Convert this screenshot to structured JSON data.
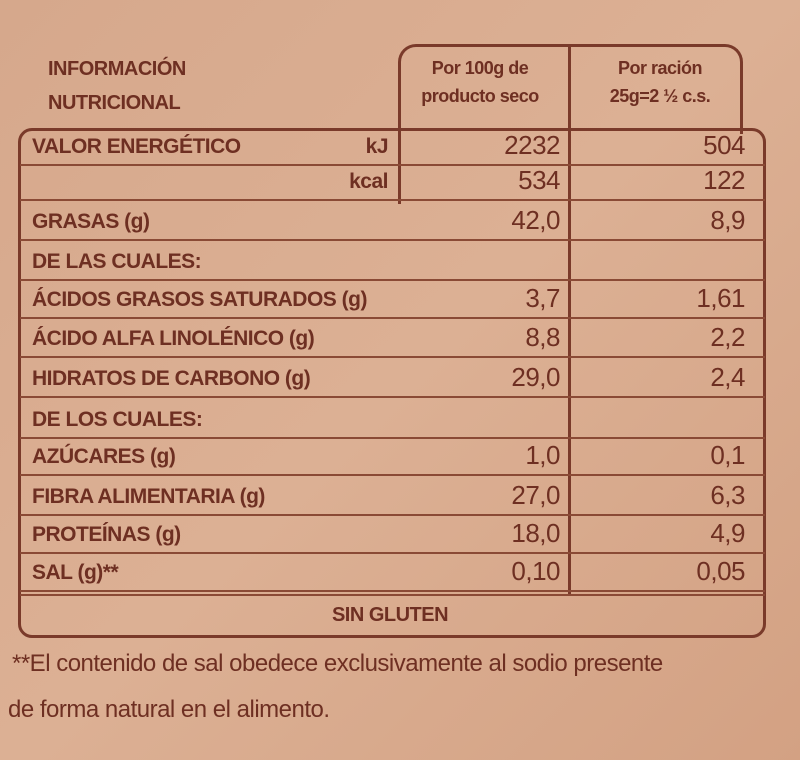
{
  "header": {
    "title_line1": "INFORMACIÓN",
    "title_line2": "NUTRICIONAL",
    "col1_line1": "Por 100g de",
    "col1_line2": "producto seco",
    "col2_line1": "Por ración",
    "col2_line2": "25g=2 ½ c.s."
  },
  "rows": [
    {
      "label": "VALOR ENERGÉTICO",
      "unit": "kJ",
      "v1": "2232",
      "v2": "504"
    },
    {
      "label": "",
      "unit": "kcal",
      "v1": "534",
      "v2": "122"
    },
    {
      "label": "GRASAS (g)",
      "unit": "",
      "v1": "42,0",
      "v2": "8,9"
    },
    {
      "label": "DE LAS CUALES:",
      "unit": "",
      "v1": "",
      "v2": ""
    },
    {
      "label": "ÁCIDOS GRASOS SATURADOS (g)",
      "unit": "",
      "v1": "3,7",
      "v2": "1,61"
    },
    {
      "label": "ÁCIDO ALFA LINOLÉNICO (g)",
      "unit": "",
      "v1": "8,8",
      "v2": "2,2"
    },
    {
      "label": "HIDRATOS DE CARBONO (g)",
      "unit": "",
      "v1": "29,0",
      "v2": "2,4"
    },
    {
      "label": "DE LOS CUALES:",
      "unit": "",
      "v1": "",
      "v2": ""
    },
    {
      "label": "AZÚCARES (g)",
      "unit": "",
      "v1": "1,0",
      "v2": "0,1"
    },
    {
      "label": "FIBRA ALIMENTARIA (g)",
      "unit": "",
      "v1": "27,0",
      "v2": "6,3"
    },
    {
      "label": "PROTEÍNAS (g)",
      "unit": "",
      "v1": "18,0",
      "v2": "4,9"
    },
    {
      "label": "SAL (g)**",
      "unit": "",
      "v1": "0,10",
      "v2": "0,05"
    }
  ],
  "footer": {
    "gluten": "SIN GLUTEN",
    "note_line1": "**El contenido de sal obedece exclusivamente al sodio presente",
    "note_line2": "de forma natural en el alimento."
  }
}
